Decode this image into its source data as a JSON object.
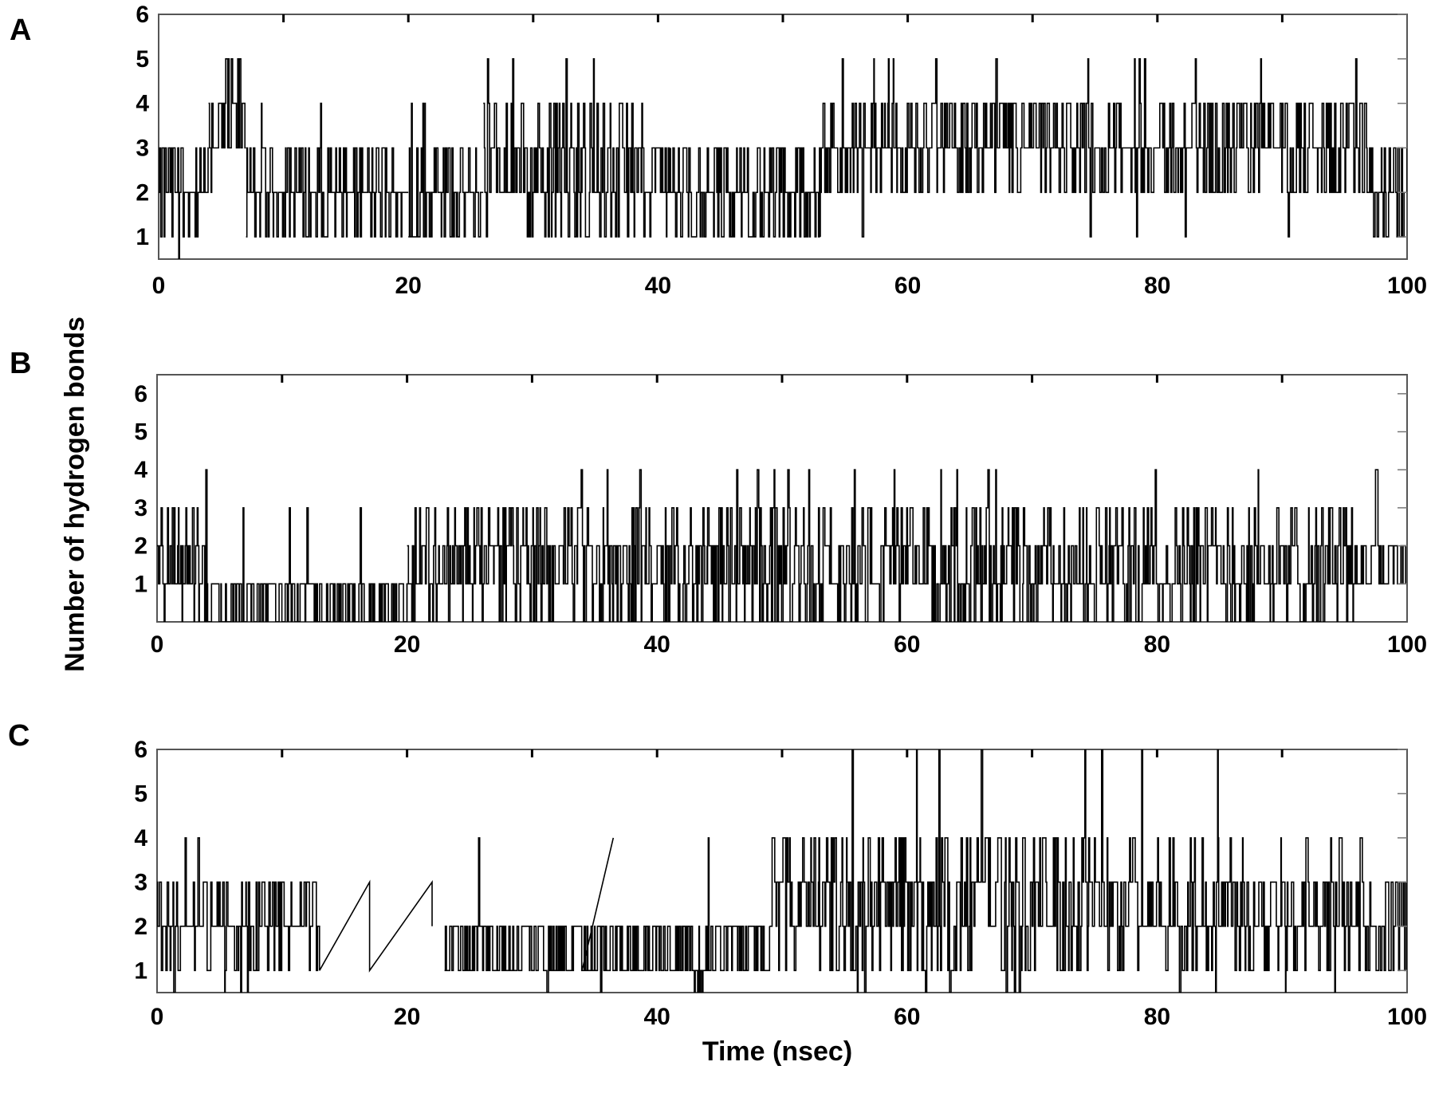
{
  "chart_data": {
    "type": "line",
    "ylabel": "Number of hydrogen bonds",
    "xlabel": "Time (nsec)",
    "panels": [
      {
        "label": "A",
        "xlim": [
          0,
          100
        ],
        "ylim": [
          0.5,
          6
        ],
        "xticks": [
          "0",
          "20",
          "40",
          "60",
          "80",
          "100"
        ],
        "yticks": [
          "1",
          "2",
          "3",
          "4",
          "5",
          "6"
        ],
        "segments": [
          {
            "x": [
              0,
              4
            ],
            "low": 1,
            "high": 3,
            "spikes_up": 4,
            "spikes_down": 0.5
          },
          {
            "x": [
              4,
              7
            ],
            "low": 2,
            "high": 5,
            "spikes_up": 6,
            "spikes_down": 1
          },
          {
            "x": [
              7,
              20
            ],
            "low": 1,
            "high": 3,
            "spikes_up": 4,
            "spikes_down": 1
          },
          {
            "x": [
              20,
              26
            ],
            "low": 1,
            "high": 3,
            "spikes_up": 4,
            "spikes_down": 1
          },
          {
            "x": [
              26,
              41
            ],
            "low": 1,
            "high": 4,
            "spikes_up": 5,
            "spikes_down": 1
          },
          {
            "x": [
              41,
              53
            ],
            "low": 1,
            "high": 3,
            "spikes_up": 3,
            "spikes_down": 1
          },
          {
            "x": [
              53,
              97
            ],
            "low": 2,
            "high": 4,
            "spikes_up": 5,
            "spikes_down": 1
          },
          {
            "x": [
              97,
              100
            ],
            "low": 1,
            "high": 3,
            "spikes_up": 3,
            "spikes_down": 1
          }
        ]
      },
      {
        "label": "B",
        "xlim": [
          0,
          100
        ],
        "ylim": [
          0,
          6.5
        ],
        "xticks": [
          "0",
          "20",
          "40",
          "60",
          "80",
          "100"
        ],
        "yticks": [
          "1",
          "2",
          "3",
          "4",
          "5",
          "6"
        ],
        "segments": [
          {
            "x": [
              0,
              4
            ],
            "low": 0,
            "high": 3,
            "spikes_up": 4,
            "spikes_down": 0
          },
          {
            "x": [
              4,
              20
            ],
            "low": 0,
            "high": 1,
            "spikes_up": 3,
            "spikes_down": 0
          },
          {
            "x": [
              20,
              44
            ],
            "low": 0,
            "high": 3,
            "spikes_up": 4,
            "spikes_down": 0
          },
          {
            "x": [
              44,
              96
            ],
            "low": 0,
            "high": 3,
            "spikes_up": 4,
            "spikes_down": 0
          },
          {
            "x": [
              96,
              100
            ],
            "low": 1,
            "high": 2,
            "spikes_up": 4,
            "spikes_down": 0
          }
        ]
      },
      {
        "label": "C",
        "xlim": [
          0,
          100
        ],
        "ylim": [
          0.5,
          6
        ],
        "xticks": [
          "0",
          "20",
          "40",
          "60",
          "80",
          "100"
        ],
        "yticks": [
          "1",
          "2",
          "3",
          "4",
          "5",
          "6"
        ],
        "segments": [
          {
            "x": [
              0,
              13
            ],
            "low": 1,
            "high": 3,
            "spikes_up": 4,
            "spikes_down": 0.5
          },
          {
            "x": [
              23,
              37
            ],
            "low": 1,
            "high": 2,
            "spikes_up": 4,
            "spikes_down": 0.5
          },
          {
            "x": [
              37,
              49
            ],
            "low": 1,
            "high": 2,
            "spikes_up": 4,
            "spikes_down": 0.5
          },
          {
            "x": [
              49,
              90
            ],
            "low": 1,
            "high": 4,
            "spikes_up": 6,
            "spikes_down": 0.5
          },
          {
            "x": [
              90,
              100
            ],
            "low": 1,
            "high": 3,
            "spikes_up": 4,
            "spikes_down": 0.5
          }
        ],
        "ramps": [
          {
            "x": [
              13,
              17,
              17,
              22,
              22
            ],
            "y": [
              1,
              3,
              1,
              3,
              2
            ]
          },
          {
            "x": [
              34,
              36.5
            ],
            "y": [
              1,
              4
            ]
          }
        ]
      }
    ]
  }
}
